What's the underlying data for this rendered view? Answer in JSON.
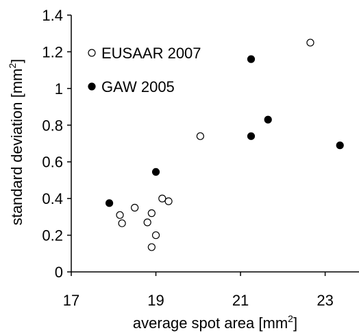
{
  "chart_data": {
    "type": "scatter",
    "xlabel_main": "average spot area [mm",
    "xlabel_sup": "2",
    "xlabel_tail": "]",
    "ylabel_main": "standard deviation [mm",
    "ylabel_sup": "2",
    "ylabel_tail": "]",
    "xlim": [
      17,
      23.8
    ],
    "ylim": [
      0,
      1.4
    ],
    "x_ticks": [
      {
        "value": 17,
        "label": "17"
      },
      {
        "value": 19,
        "label": "19"
      },
      {
        "value": 21,
        "label": "21"
      },
      {
        "value": 23,
        "label": "23"
      }
    ],
    "y_ticks": [
      {
        "value": 0,
        "label": "0"
      },
      {
        "value": 0.2,
        "label": "0.2"
      },
      {
        "value": 0.4,
        "label": "0.4"
      },
      {
        "value": 0.6,
        "label": "0.6"
      },
      {
        "value": 0.8,
        "label": "0.8"
      },
      {
        "value": 1.0,
        "label": "1"
      },
      {
        "value": 1.2,
        "label": "1.2"
      },
      {
        "value": 1.4,
        "label": "1.4"
      }
    ],
    "grid": false,
    "legend_position": "top-left",
    "series": [
      {
        "name": "EUSAAR 2007",
        "marker": "open-circle",
        "color": "#000000",
        "points": [
          {
            "x": 18.15,
            "y": 0.31
          },
          {
            "x": 18.2,
            "y": 0.265
          },
          {
            "x": 18.5,
            "y": 0.35
          },
          {
            "x": 18.8,
            "y": 0.27
          },
          {
            "x": 18.9,
            "y": 0.32
          },
          {
            "x": 18.9,
            "y": 0.135
          },
          {
            "x": 19.0,
            "y": 0.2
          },
          {
            "x": 19.15,
            "y": 0.4
          },
          {
            "x": 19.3,
            "y": 0.385
          },
          {
            "x": 20.05,
            "y": 0.74
          },
          {
            "x": 22.65,
            "y": 1.25
          }
        ]
      },
      {
        "name": "GAW 2005",
        "marker": "filled-circle",
        "color": "#000000",
        "points": [
          {
            "x": 17.9,
            "y": 0.375
          },
          {
            "x": 19.0,
            "y": 0.545
          },
          {
            "x": 21.25,
            "y": 1.16
          },
          {
            "x": 21.25,
            "y": 0.74
          },
          {
            "x": 21.65,
            "y": 0.83
          },
          {
            "x": 23.35,
            "y": 0.69
          }
        ]
      }
    ]
  }
}
